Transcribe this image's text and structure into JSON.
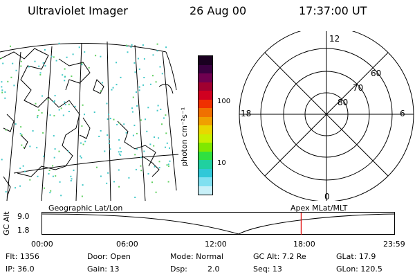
{
  "header": {
    "title": "Ultraviolet Imager",
    "date": "26 Aug 00",
    "time": "17:37:00 UT"
  },
  "colorbar": {
    "unit_label": "photon cm⁻²s⁻¹",
    "ticks": [
      "100",
      "10"
    ],
    "colors": [
      "#1a0020",
      "#3a0040",
      "#700050",
      "#a00030",
      "#d00020",
      "#f03000",
      "#f07000",
      "#f0a000",
      "#e8d800",
      "#c8f000",
      "#80e800",
      "#30e040",
      "#20d0a0",
      "#30c8d8",
      "#80e0f0",
      "#c8f0f8"
    ]
  },
  "polar_plot": {
    "mlt_labels": {
      "top": "12",
      "left": "18",
      "right": "6",
      "bottom": "0"
    },
    "lat_labels": [
      "60",
      "70",
      "80"
    ]
  },
  "altitude_panel": {
    "left_caption": "Geographic Lat/Lon",
    "right_caption": "Apex MLat/MLT",
    "y_axis_label": "GC Alt",
    "y_ticks": [
      "9.0",
      "1.8"
    ],
    "x_ticks": [
      "00:00",
      "06:00",
      "12:00",
      "18:00",
      "23:59"
    ],
    "current_time_marker_hours": 17.62,
    "marker_color": "#e00000"
  },
  "info": {
    "flt": "Flt: 1356",
    "ip": "IP: 36.0",
    "door": "Door: Open",
    "gain": "Gain: 13",
    "mode": "Mode: Normal",
    "dsp_label": "Dsp:",
    "dsp_value": "2.0",
    "gc_alt": "GC Alt: 7.2 Re",
    "seq": "Seq: 13",
    "glat": "GLat:  17.9",
    "glon": "GLon: 120.5"
  }
}
